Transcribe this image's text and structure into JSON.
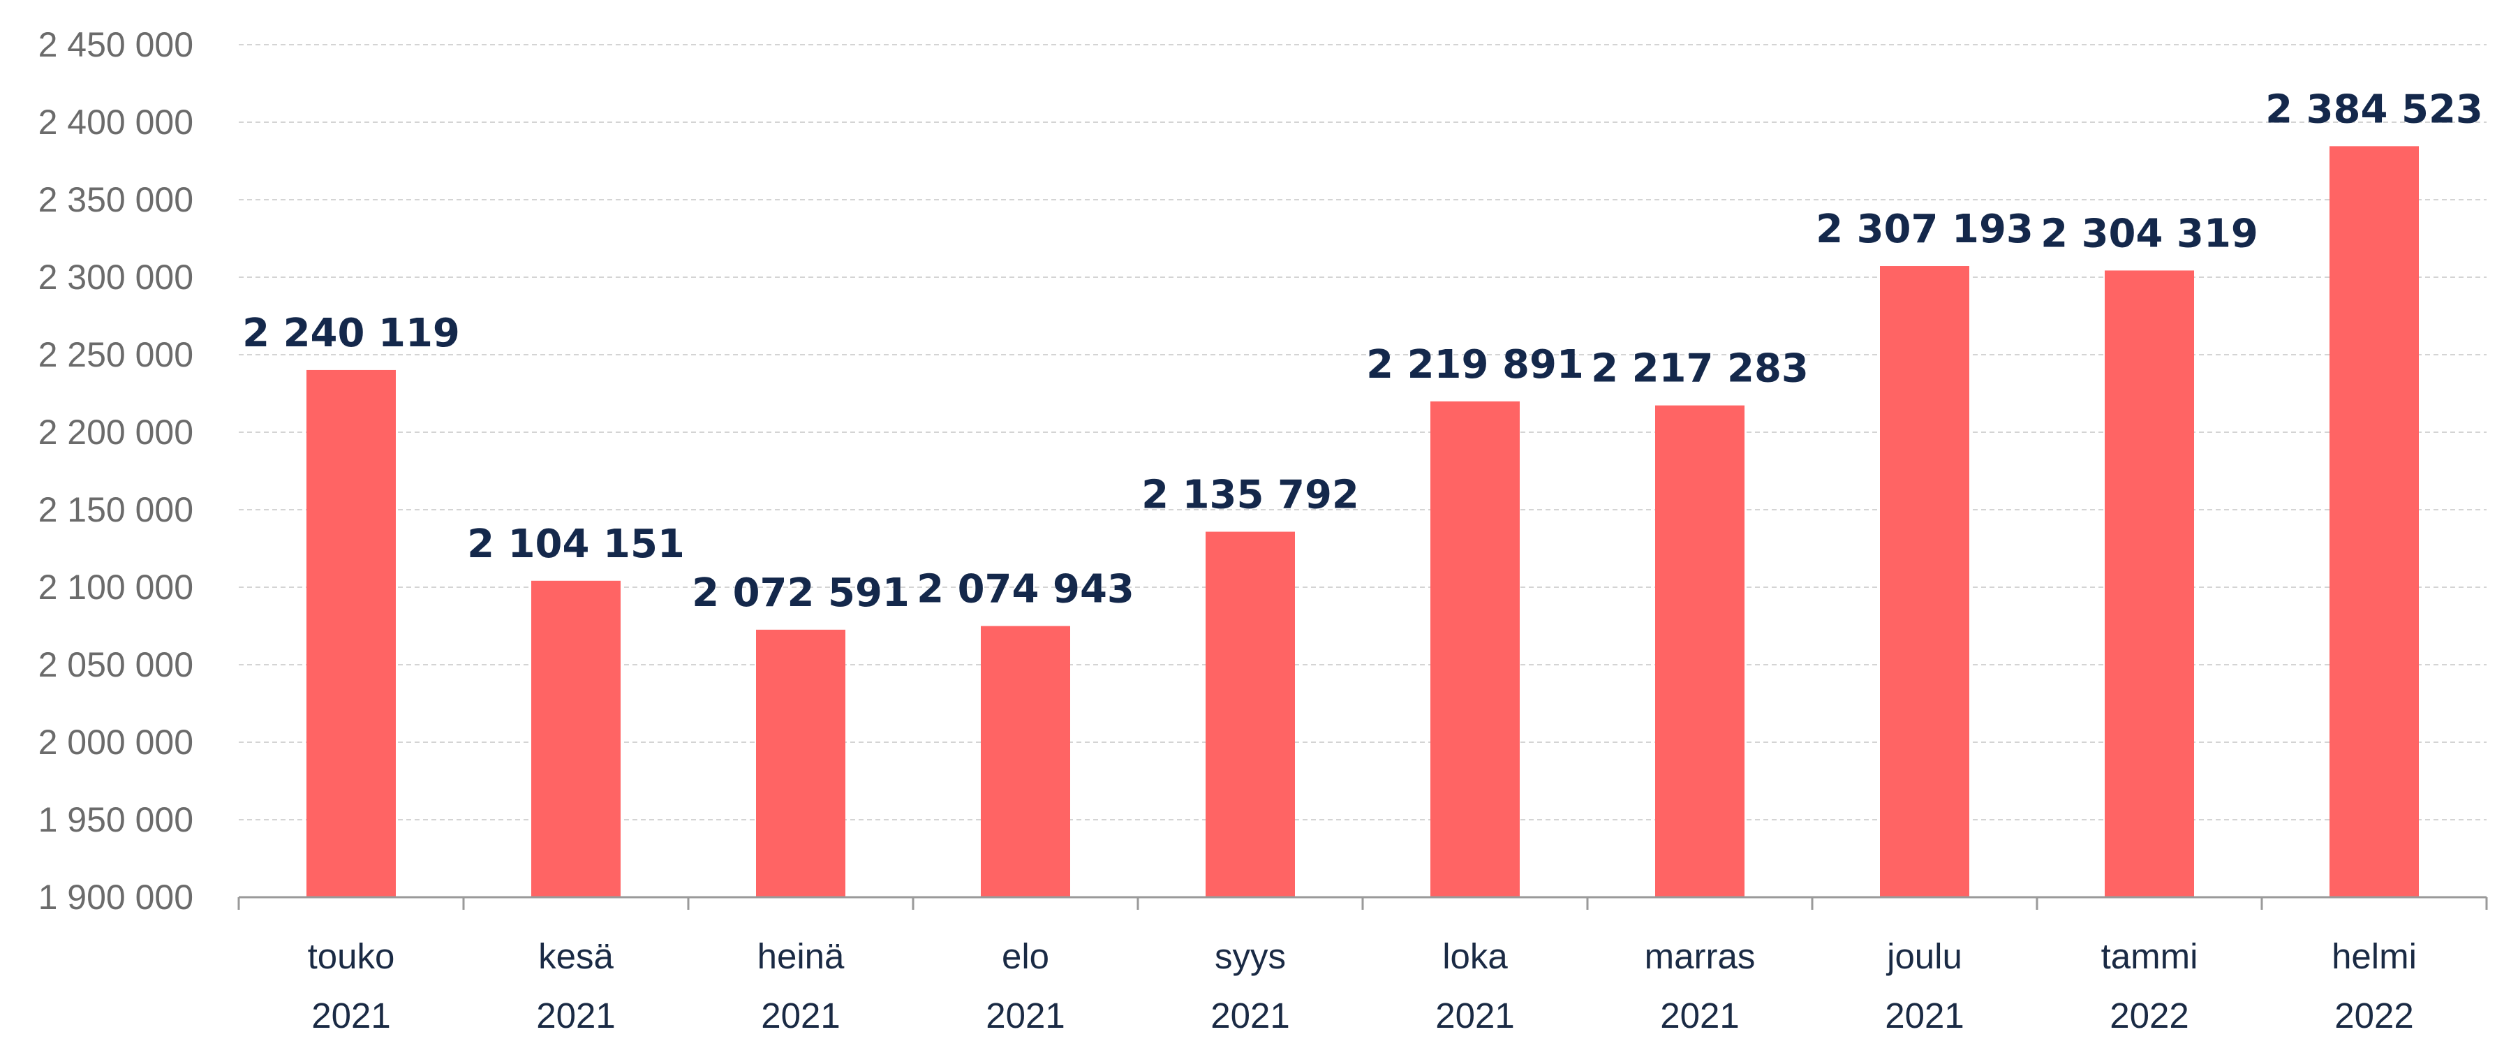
{
  "chart_data": {
    "type": "bar",
    "categories": [
      [
        "touko",
        "2021"
      ],
      [
        "kesä",
        "2021"
      ],
      [
        "heinä",
        "2021"
      ],
      [
        "elo",
        "2021"
      ],
      [
        "syys",
        "2021"
      ],
      [
        "loka",
        "2021"
      ],
      [
        "marras",
        "2021"
      ],
      [
        "joulu",
        "2021"
      ],
      [
        "tammi",
        "2022"
      ],
      [
        "helmi",
        "2022"
      ]
    ],
    "values": [
      2240119,
      2104151,
      2072591,
      2074943,
      2135792,
      2219891,
      2217283,
      2307193,
      2304319,
      2384523
    ],
    "data_labels": [
      "2 240 119",
      "2 104 151",
      "2 072 591",
      "2 074 943",
      "2 135 792",
      "2 219 891",
      "2 217 283",
      "2 307 193",
      "2 304 319",
      "2 384 523"
    ],
    "ylim": [
      1900000,
      2450000
    ],
    "yticks": [
      1900000,
      1950000,
      2000000,
      2050000,
      2100000,
      2150000,
      2200000,
      2250000,
      2300000,
      2350000,
      2400000,
      2450000
    ],
    "ytick_labels": [
      "1 900 000",
      "1 950 000",
      "2 000 000",
      "2 050 000",
      "2 100 000",
      "2 150 000",
      "2 200 000",
      "2 250 000",
      "2 300 000",
      "2 350 000",
      "2 400 000",
      "2 450 000"
    ],
    "grid": true,
    "legend": "none",
    "bar_color": "#ff6464",
    "label_color": "#14284b",
    "title": "",
    "xlabel": "",
    "ylabel": ""
  }
}
